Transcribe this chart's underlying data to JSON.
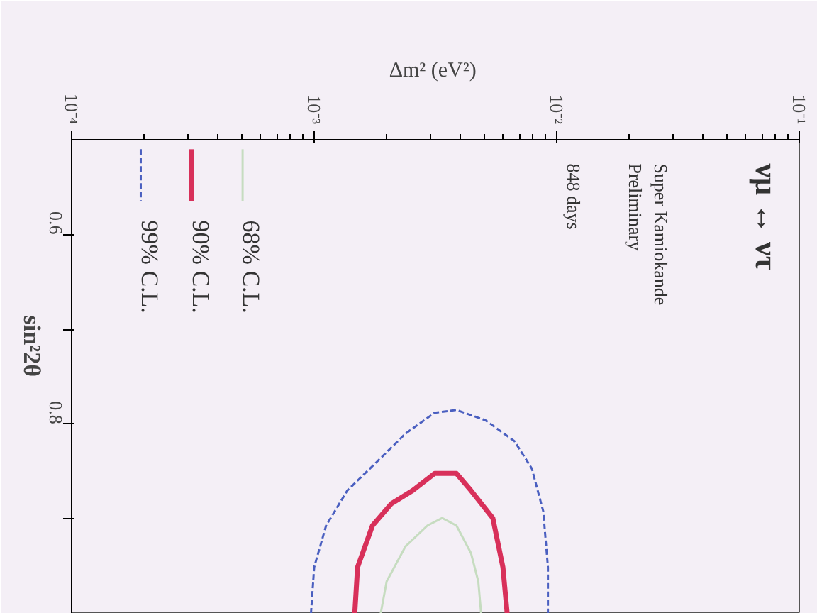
{
  "chart_data": {
    "type": "line",
    "xlabel": "Δm²  (eV²)",
    "ylabel": "sin²2θ",
    "log": "x",
    "xlim": [
      0.0001,
      0.1
    ],
    "ylim": [
      1.0,
      0.5
    ],
    "xticks": [
      {
        "value": 0.0001,
        "label": "10⁻⁴"
      },
      {
        "value": 0.001,
        "label": "10⁻³"
      },
      {
        "value": 0.01,
        "label": "10⁻²"
      },
      {
        "value": 0.1,
        "label": "10⁻¹"
      }
    ],
    "yticks": [
      0.6,
      {
        "value": 0.7,
        "label": null
      },
      0.8,
      {
        "value": 0.9,
        "label": null
      }
    ],
    "legend": "top left",
    "marker": "none",
    "annotations": [
      "νμ ↔ ντ",
      "Super Kamiokande Preliminary",
      "848 days"
    ],
    "series": [
      {
        "name": "68% C.L.",
        "color": "#c6dcc0",
        "line_style": "solid",
        "x": [
          0.00188,
          0.00199,
          0.00238,
          0.00293,
          0.00337,
          0.00386,
          0.00443,
          0.00475,
          0.00488
        ],
        "values": [
          1.0,
          0.966,
          0.929,
          0.907,
          0.899,
          0.907,
          0.936,
          0.966,
          1.0
        ]
      },
      {
        "name": "90% C.L.",
        "color": "#d8305a",
        "line_style": "solid",
        "x": [
          0.00147,
          0.00151,
          0.00174,
          0.00208,
          0.00255,
          0.00314,
          0.00386,
          0.00443,
          0.00545,
          0.006,
          0.00625
        ],
        "values": [
          1.0,
          0.951,
          0.907,
          0.884,
          0.87,
          0.852,
          0.852,
          0.87,
          0.899,
          0.951,
          1.0
        ]
      },
      {
        "name": "99% C.L.",
        "color": "#4a5fc0",
        "line_style": "dotted",
        "x": [
          0.00097,
          0.001,
          0.00112,
          0.00137,
          0.00181,
          0.00238,
          0.00314,
          0.00386,
          0.00509,
          0.0067,
          0.0079,
          0.0088,
          0.0092,
          0.0092
        ],
        "values": [
          1.0,
          0.951,
          0.907,
          0.87,
          0.84,
          0.81,
          0.788,
          0.785,
          0.796,
          0.818,
          0.847,
          0.892,
          0.951,
          1.0
        ]
      }
    ]
  }
}
